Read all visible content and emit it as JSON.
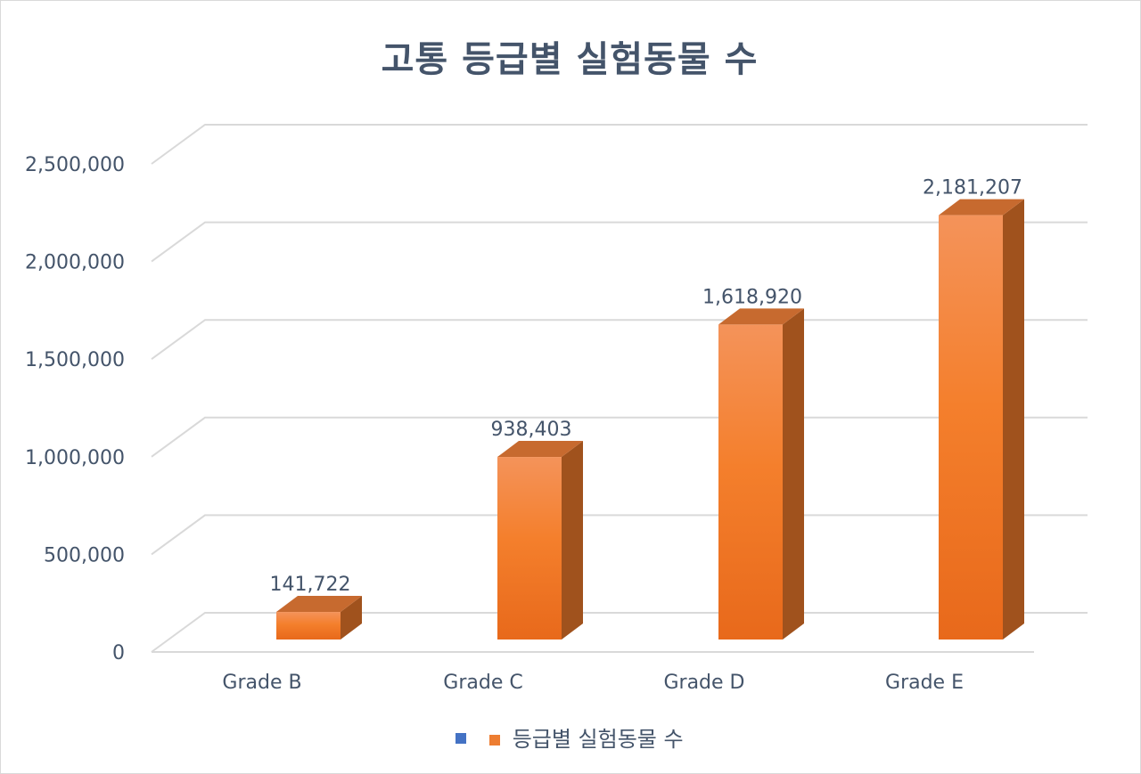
{
  "chart_title": "고통 등급별 실험동물 수",
  "chart_data": {
    "type": "bar",
    "title": "고통 등급별 실험동물 수",
    "categories": [
      "Grade B",
      "Grade C",
      "Grade D",
      "Grade E"
    ],
    "series": [
      {
        "name": "등급별 실험동물 수",
        "values": [
          141722,
          938403,
          1618920,
          2181207
        ]
      }
    ],
    "data_labels": [
      "141,722",
      "938,403",
      "1,618,920",
      "2,181,207"
    ],
    "yticks": [
      "0",
      "500,000",
      "1,000,000",
      "1,500,000",
      "2,000,000",
      "2,500,000"
    ],
    "ylim": [
      0,
      2500000
    ],
    "grid": true,
    "legend_position": "bottom",
    "style": "3d-column"
  },
  "legend": {
    "items": [
      {
        "label": "",
        "color": "#4472c4"
      },
      {
        "label": "등급별 실험동물 수",
        "color": "#ed7d31"
      }
    ]
  },
  "colors": {
    "bar_front": "#f07f2a",
    "bar_top": "#c76a2f",
    "bar_side": "#a0521d",
    "grid": "#d9d9d9",
    "text": "#44546a"
  }
}
